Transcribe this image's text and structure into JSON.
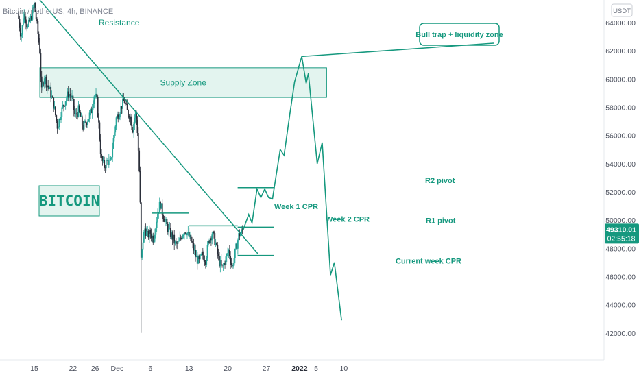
{
  "chart_data": {
    "type": "candlestick",
    "symbol_text": "Bitcoin / TetherUS, 4h, BINANCE",
    "unit_badge": "USDT",
    "y_axis": {
      "min": 41000,
      "max": 66000,
      "ticks": [
        "64000.00",
        "62000.00",
        "60000.00",
        "58000.00",
        "56000.00",
        "54000.00",
        "52000.00",
        "50000.00",
        "48000.00",
        "46000.00",
        "44000.00",
        "42000.00"
      ],
      "tick_values": [
        64000,
        62000,
        60000,
        58000,
        56000,
        54000,
        52000,
        50000,
        48000,
        46000,
        44000,
        42000
      ]
    },
    "x_axis": {
      "ticks": [
        {
          "label": "15",
          "day": 0
        },
        {
          "label": "22",
          "day": 7
        },
        {
          "label": "26",
          "day": 11
        },
        {
          "label": "Dec",
          "day": 15,
          "bold": false
        },
        {
          "label": "6",
          "day": 21
        },
        {
          "label": "13",
          "day": 28
        },
        {
          "label": "20",
          "day": 35
        },
        {
          "label": "27",
          "day": 42
        },
        {
          "label": "2022",
          "day": 48,
          "bold": true
        },
        {
          "label": "5",
          "day": 51
        },
        {
          "label": "10",
          "day": 56
        }
      ]
    },
    "current_price": {
      "value": 49310.01,
      "label": "49310.01",
      "countdown": "02:55:18"
    },
    "price_path": [
      [
        -3,
        64800
      ],
      [
        -2.4,
        63000
      ],
      [
        -1.8,
        64800
      ],
      [
        -1.2,
        63600
      ],
      [
        -0.5,
        64500
      ],
      [
        0,
        65300
      ],
      [
        0.5,
        63800
      ],
      [
        1,
        62000
      ],
      [
        1.3,
        59000
      ],
      [
        1.8,
        60300
      ],
      [
        2.2,
        59700
      ],
      [
        2.8,
        59200
      ],
      [
        3.5,
        58200
      ],
      [
        4.2,
        56600
      ],
      [
        4.8,
        57600
      ],
      [
        5.5,
        58400
      ],
      [
        6.2,
        59000
      ],
      [
        6.8,
        58700
      ],
      [
        7.4,
        57300
      ],
      [
        8,
        57800
      ],
      [
        8.8,
        56600
      ],
      [
        9.6,
        57100
      ],
      [
        10.3,
        57700
      ],
      [
        10.8,
        58900
      ],
      [
        11.3,
        58600
      ],
      [
        11.7,
        56600
      ],
      [
        12.1,
        54400
      ],
      [
        12.6,
        53800
      ],
      [
        13.2,
        54200
      ],
      [
        13.8,
        54000
      ],
      [
        14.3,
        55600
      ],
      [
        14.8,
        57200
      ],
      [
        15.3,
        57600
      ],
      [
        15.8,
        58100
      ],
      [
        16.3,
        58500
      ],
      [
        16.8,
        57700
      ],
      [
        17.3,
        57400
      ],
      [
        17.8,
        56400
      ],
      [
        18.3,
        57600
      ],
      [
        18.6,
        56900
      ],
      [
        18.9,
        54400
      ],
      [
        19.1,
        52600
      ],
      [
        19.35,
        46800
      ],
      [
        19.6,
        48400
      ],
      [
        20,
        49400
      ],
      [
        20.5,
        48900
      ],
      [
        21,
        49100
      ],
      [
        21.5,
        48700
      ],
      [
        22,
        49600
      ],
      [
        22.4,
        50700
      ],
      [
        22.8,
        51200
      ],
      [
        23.2,
        50500
      ],
      [
        23.8,
        49800
      ],
      [
        24.4,
        49200
      ],
      [
        25,
        48800
      ],
      [
        25.6,
        48200
      ],
      [
        26.2,
        48400
      ],
      [
        26.8,
        49100
      ],
      [
        27.4,
        49300
      ],
      [
        28,
        48800
      ],
      [
        28.6,
        48300
      ],
      [
        29.2,
        47400
      ],
      [
        29.8,
        47000
      ],
      [
        30.4,
        47600
      ],
      [
        31,
        47200
      ],
      [
        31.6,
        48600
      ],
      [
        32.2,
        49100
      ],
      [
        32.8,
        48400
      ],
      [
        33.4,
        47100
      ],
      [
        34,
        46600
      ],
      [
        34.6,
        47200
      ],
      [
        35.2,
        47900
      ],
      [
        35.8,
        46600
      ],
      [
        36.2,
        47400
      ],
      [
        36.6,
        48200
      ],
      [
        37,
        48900
      ],
      [
        37.4,
        49100
      ],
      [
        37.8,
        49310
      ]
    ],
    "forecast_path": [
      [
        37.8,
        49310
      ],
      [
        38.8,
        50400
      ],
      [
        39.4,
        49800
      ],
      [
        40.3,
        52200
      ],
      [
        41,
        51600
      ],
      [
        41.7,
        52200
      ],
      [
        42.4,
        51600
      ],
      [
        43.1,
        51500
      ],
      [
        44.5,
        55000
      ],
      [
        45.2,
        54600
      ],
      [
        46.2,
        57400
      ],
      [
        47.1,
        59800
      ],
      [
        48.4,
        61600
      ],
      [
        49.2,
        59700
      ],
      [
        49.6,
        60400
      ],
      [
        51.2,
        54000
      ],
      [
        52.1,
        55500
      ],
      [
        53.6,
        46100
      ],
      [
        54.3,
        47000
      ],
      [
        55.6,
        42900
      ]
    ],
    "supply_zone": {
      "label": "Supply Zone",
      "day_start": 1,
      "day_end": 52.9,
      "price_low": 58700,
      "price_high": 60800
    },
    "resistance": {
      "label": "Resistance",
      "from": {
        "day": 1,
        "price": 65600
      },
      "to": {
        "day": 40.5,
        "price": 47600
      }
    },
    "levels": [
      {
        "label": "Week 1 CPR",
        "day_start": 21.3,
        "day_end": 28,
        "price": 50500
      },
      {
        "label": "Week 2 CPR",
        "day_start": 28,
        "day_end": 36.8,
        "price": 49600
      },
      {
        "label": "Current week CPR",
        "day_start": 36.8,
        "day_end": 43.4,
        "price": 47500
      },
      {
        "label": "R1 pivot",
        "day_start": 36.8,
        "day_end": 43.4,
        "price": 49500
      },
      {
        "label": "R2 pivot",
        "day_start": 36.8,
        "day_end": 43.4,
        "price": 52300
      }
    ],
    "annotations": {
      "bull_trap": "Bull trap + liquidity zone",
      "bitcoin": "BITCOIN"
    },
    "colors": {
      "accent": "#15987e",
      "up_candle": "#26a69a",
      "down_candle": "#2b2f3a",
      "zone_fill": "#e3f4ef",
      "price_tag": "#15987e"
    }
  }
}
